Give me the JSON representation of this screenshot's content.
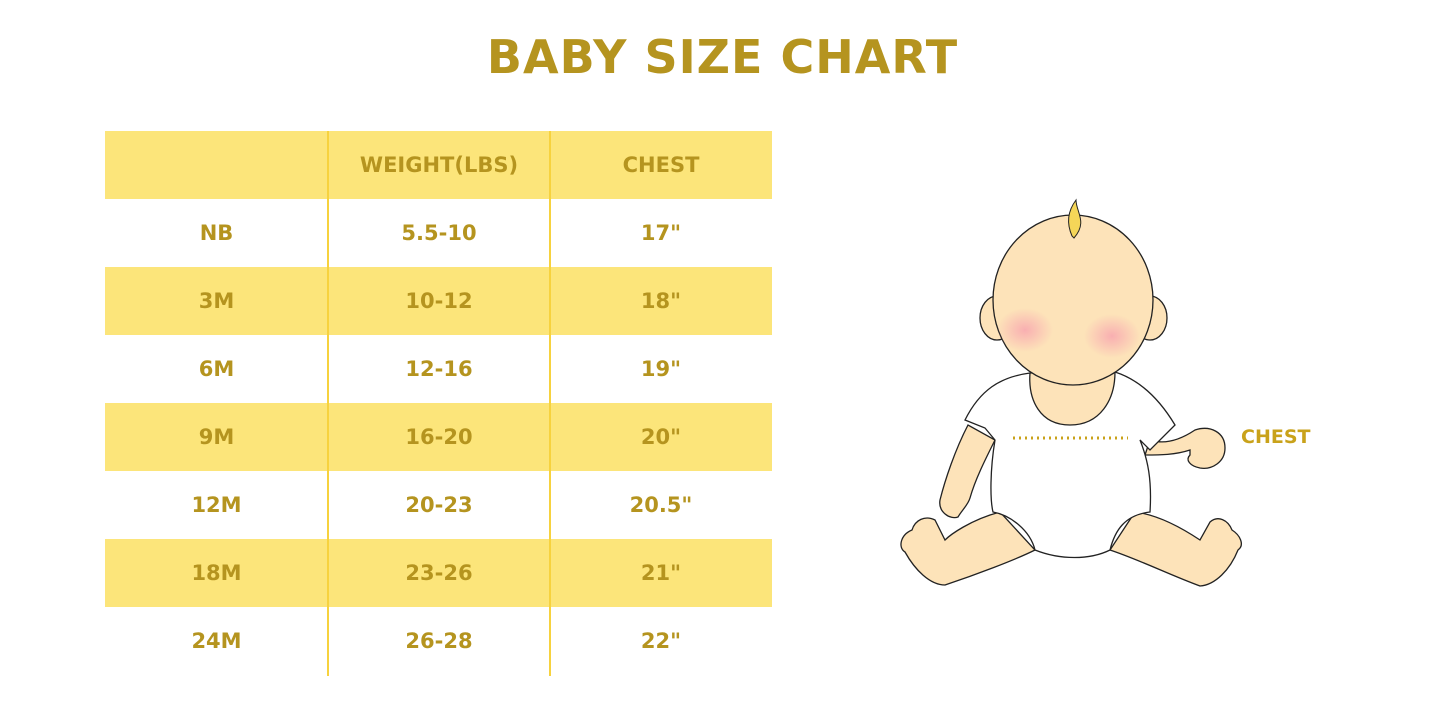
{
  "title": "BABY SIZE CHART",
  "colors": {
    "accent_text": "#B5941F",
    "row_fill": "#FCE57A",
    "divider": "#F7D23E",
    "skin": "#FDE3B9",
    "cheek": "#F8B4B8",
    "hair": "#F5D658"
  },
  "table": {
    "headers": [
      "",
      "WEIGHT(LBS)",
      "CHEST"
    ],
    "rows": [
      [
        "NB",
        "5.5-10",
        "17\""
      ],
      [
        "3M",
        "10-12",
        "18\""
      ],
      [
        "6M",
        "12-16",
        "19\""
      ],
      [
        "9M",
        "16-20",
        "20\""
      ],
      [
        "12M",
        "20-23",
        "20.5\""
      ],
      [
        "18M",
        "23-26",
        "21\""
      ],
      [
        "24M",
        "26-28",
        "22\""
      ]
    ]
  },
  "illustration": {
    "chest_label": "CHEST"
  }
}
